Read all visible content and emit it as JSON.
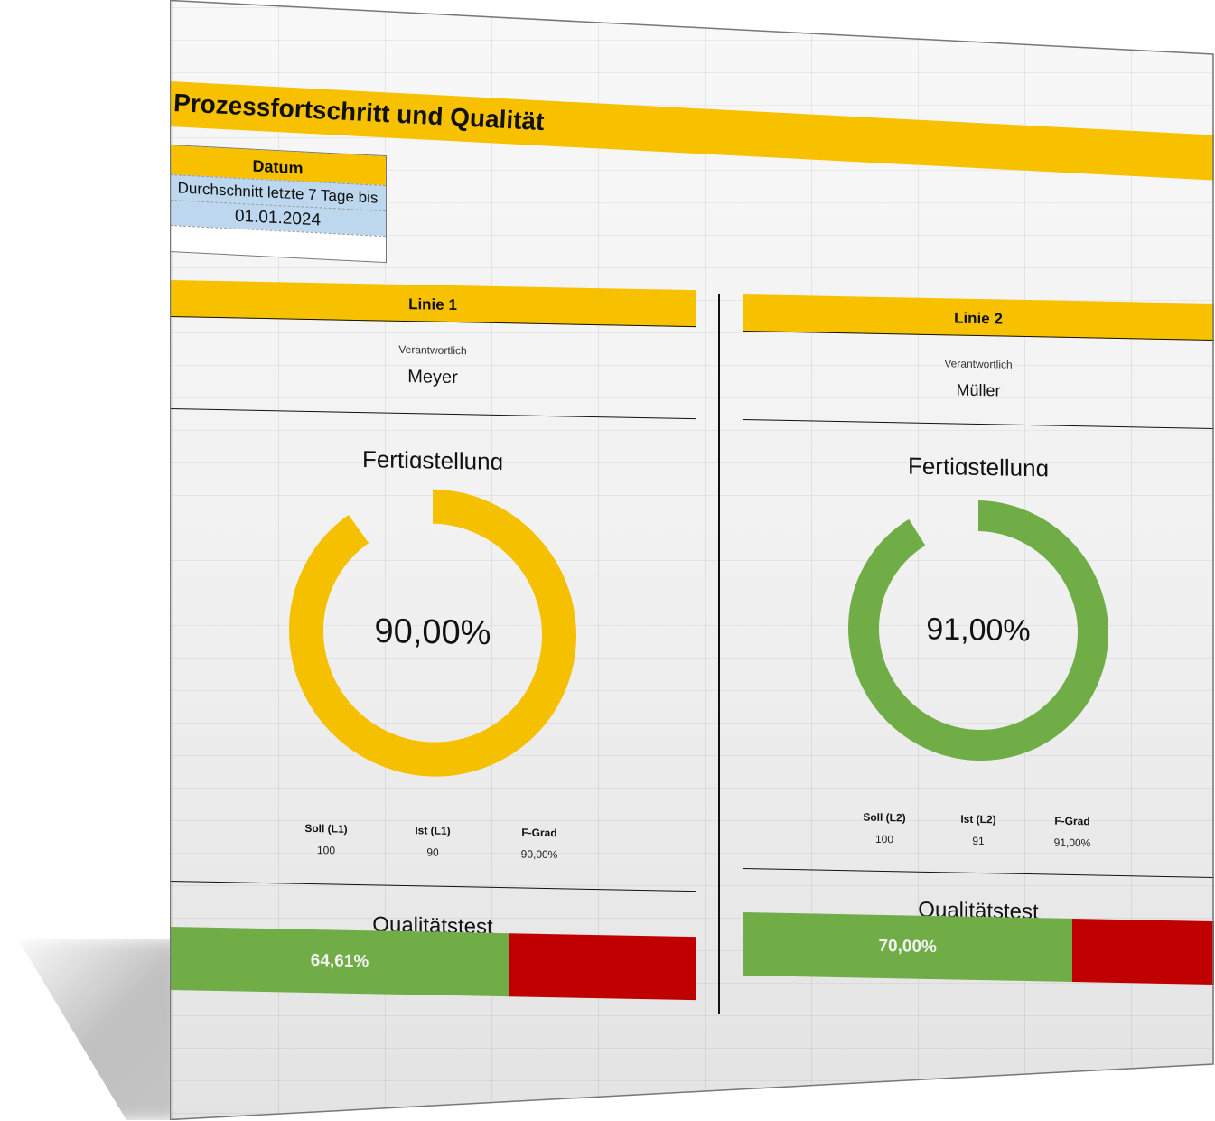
{
  "title": "Prozessfortschritt und Qualität",
  "date_box": {
    "header": "Datum",
    "subtitle": "Durchschnitt letzte 7 Tage bis",
    "date": "01.01.2024"
  },
  "colors": {
    "accent_yellow": "#f7c100",
    "date_blue": "#bdd7ee",
    "pass_green": "#70ad47",
    "fail_red": "#c00000"
  },
  "lines": [
    {
      "header": "Linie 1",
      "responsible_label": "Verantwortlich",
      "responsible_name": "Meyer",
      "completion_title": "Fertigstellung",
      "completion_value": 90,
      "completion_label": "90,00%",
      "donut_color": "#f5c000",
      "kpi": [
        {
          "header": "Soll (L1)",
          "value": "100"
        },
        {
          "header": "Ist (L1)",
          "value": "90"
        },
        {
          "header": "F-Grad",
          "value": "90,00%"
        }
      ],
      "quality_title": "Qualitätstest",
      "quality_value": 64.61,
      "quality_label": "64,61%"
    },
    {
      "header": "Linie 2",
      "responsible_label": "Verantwortlich",
      "responsible_name": "Müller",
      "completion_title": "Fertigstellung",
      "completion_value": 91,
      "completion_label": "91,00%",
      "donut_color": "#70ad47",
      "kpi": [
        {
          "header": "Soll (L2)",
          "value": "100"
        },
        {
          "header": "Ist (L2)",
          "value": "91"
        },
        {
          "header": "F-Grad",
          "value": "91,00%"
        }
      ],
      "quality_title": "Qualitätstest",
      "quality_value": 70.0,
      "quality_label": "70,00%"
    }
  ]
}
